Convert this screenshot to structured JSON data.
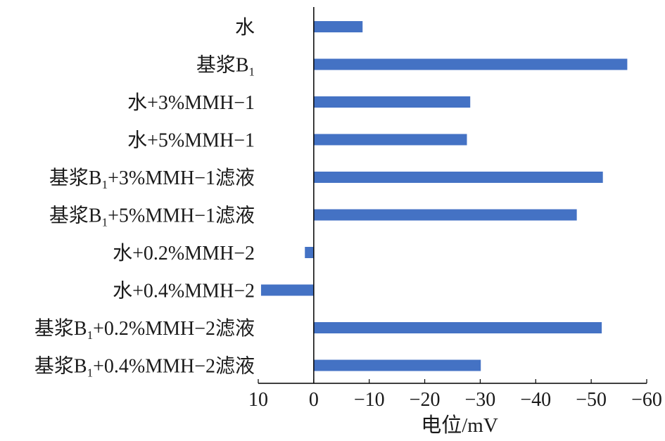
{
  "chart_data": {
    "type": "bar",
    "orientation": "horizontal",
    "categories": [
      {
        "text": "水"
      },
      {
        "text": "基浆B",
        "sub": "1"
      },
      {
        "text": "水+3%MMH−1"
      },
      {
        "text": "水+5%MMH−1"
      },
      {
        "text": "基浆B",
        "sub": "1",
        "suffix": "+3%MMH−1滤液"
      },
      {
        "text": "基浆B",
        "sub": "1",
        "suffix": "+5%MMH−1滤液"
      },
      {
        "text": "水+0.2%MMH−2"
      },
      {
        "text": "水+0.4%MMH−2"
      },
      {
        "text": "基浆B",
        "sub": "1",
        "suffix": "+0.2%MMH−2滤液"
      },
      {
        "text": "基浆B",
        "sub": "1",
        "suffix": "+0.4%MMH−2滤液"
      }
    ],
    "values": [
      -8.8,
      -56.5,
      -28.2,
      -27.6,
      -52.1,
      -47.4,
      1.6,
      9.5,
      -51.9,
      -30.1
    ],
    "xlabel": "电位/mV",
    "xlim": [
      10,
      -60
    ],
    "xticks": [
      10,
      0,
      -10,
      -20,
      -30,
      -40,
      -50,
      -60
    ],
    "xtick_labels": [
      "10",
      "0",
      "−10",
      "−20",
      "−30",
      "−40",
      "−50",
      "−60"
    ],
    "bar_color": "#4472c4",
    "grid": false
  }
}
